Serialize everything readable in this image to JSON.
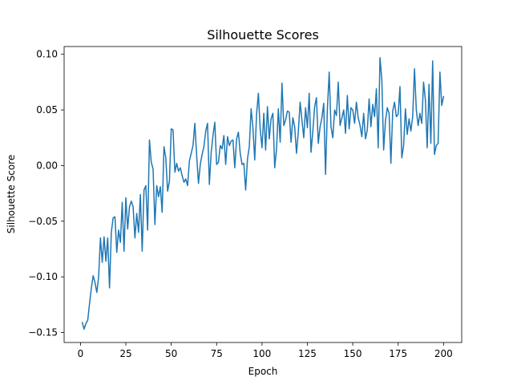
{
  "chart_data": {
    "type": "line",
    "title": "Silhouette Scores",
    "xlabel": "Epoch",
    "ylabel": "Silhouette Score",
    "xlim": [
      -9,
      210
    ],
    "ylim": [
      -0.159,
      0.107
    ],
    "xticks": [
      0,
      25,
      50,
      75,
      100,
      125,
      150,
      175,
      200
    ],
    "yticks": [
      -0.15,
      -0.1,
      -0.05,
      0.0,
      0.05,
      0.1
    ],
    "ytick_labels": [
      "−0.15",
      "−0.10",
      "−0.05",
      "0.00",
      "0.05",
      "0.10"
    ],
    "grid": false,
    "color": "#1f77b4",
    "x_start": 1,
    "x_step": 1,
    "values": [
      -0.141,
      -0.147,
      -0.142,
      -0.139,
      -0.124,
      -0.11,
      -0.099,
      -0.105,
      -0.114,
      -0.1,
      -0.065,
      -0.087,
      -0.064,
      -0.086,
      -0.065,
      -0.11,
      -0.06,
      -0.047,
      -0.046,
      -0.078,
      -0.058,
      -0.069,
      -0.033,
      -0.077,
      -0.029,
      -0.057,
      -0.037,
      -0.032,
      -0.037,
      -0.065,
      -0.043,
      -0.06,
      -0.026,
      -0.077,
      -0.022,
      -0.018,
      -0.058,
      0.023,
      0.003,
      -0.003,
      -0.053,
      -0.018,
      -0.028,
      -0.019,
      -0.042,
      0.017,
      0.007,
      -0.023,
      -0.014,
      0.033,
      0.032,
      -0.006,
      0.002,
      -0.005,
      -0.002,
      -0.009,
      -0.015,
      -0.012,
      -0.018,
      0.004,
      0.011,
      0.018,
      0.038,
      0.009,
      -0.016,
      0.001,
      0.01,
      0.017,
      0.031,
      0.038,
      -0.017,
      0.012,
      0.027,
      0.039,
      0.001,
      0.003,
      0.018,
      0.015,
      0.027,
      0.001,
      0.026,
      0.018,
      0.022,
      0.023,
      -0.002,
      0.024,
      0.03,
      0.011,
      0.001,
      0.002,
      -0.022,
      0.006,
      0.017,
      0.051,
      0.034,
      0.005,
      0.046,
      0.065,
      0.033,
      0.016,
      0.047,
      0.014,
      0.053,
      0.024,
      0.042,
      0.047,
      -0.002,
      0.015,
      0.051,
      0.021,
      0.074,
      0.036,
      0.041,
      0.049,
      0.048,
      0.021,
      0.043,
      0.035,
      0.011,
      0.03,
      0.057,
      0.041,
      0.025,
      0.052,
      0.034,
      0.065,
      0.012,
      0.031,
      0.053,
      0.061,
      0.02,
      0.035,
      0.043,
      0.056,
      -0.008,
      0.05,
      0.084,
      0.035,
      0.025,
      0.05,
      0.045,
      0.075,
      0.036,
      0.043,
      0.05,
      0.029,
      0.063,
      0.033,
      0.052,
      0.05,
      0.038,
      0.057,
      0.043,
      0.036,
      0.026,
      0.047,
      0.024,
      0.032,
      0.06,
      0.035,
      0.055,
      0.044,
      0.069,
      0.016,
      0.097,
      0.077,
      0.014,
      0.04,
      0.052,
      0.047,
      0.002,
      0.049,
      0.057,
      0.044,
      0.046,
      0.071,
      0.007,
      0.018,
      0.051,
      0.028,
      0.042,
      0.031,
      0.044,
      0.087,
      0.05,
      0.036,
      0.047,
      0.038,
      0.075,
      0.059,
      0.016,
      0.073,
      0.02,
      0.094,
      0.01,
      0.018,
      0.02,
      0.084,
      0.054,
      0.062
    ]
  }
}
